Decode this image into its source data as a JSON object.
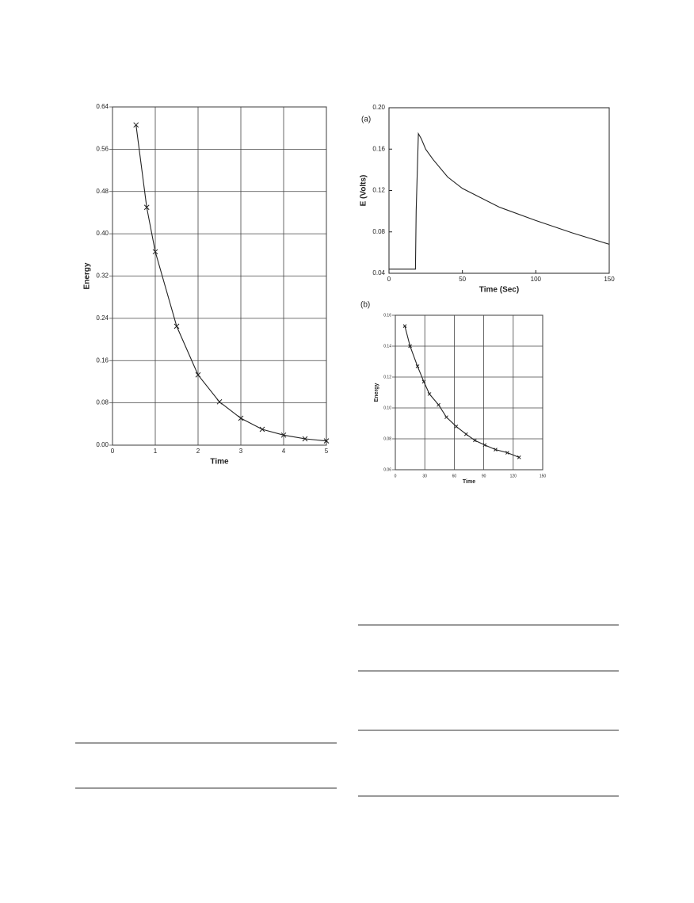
{
  "chart_data": [
    {
      "type": "line",
      "xlabel": "Time",
      "ylabel": "Energy",
      "xlim": [
        0,
        5
      ],
      "xticks": [
        0,
        1,
        2,
        3,
        4,
        5
      ],
      "ylim": [
        0,
        0.64
      ],
      "yticks": [
        {
          "value": 0,
          "label": "0.00"
        },
        0.08,
        0.16,
        0.24,
        0.32,
        {
          "value": 0.4,
          "label": "0.40"
        },
        0.48,
        0.56,
        0.64
      ],
      "grid": true,
      "series": [
        {
          "color": "#222222",
          "marker": "x",
          "x": [
            0.55,
            0.8,
            1.0,
            1.5,
            2.0,
            2.5,
            3.0,
            3.5,
            4.0,
            4.5,
            5.0
          ],
          "values": [
            0.606,
            0.45,
            0.366,
            0.225,
            0.133,
            0.082,
            0.051,
            0.03,
            0.019,
            0.012,
            0.008
          ]
        }
      ]
    },
    {
      "type": "line",
      "panel_label": "(a)",
      "xlabel": "Time (Sec)",
      "ylabel": "E (Volts)",
      "xlim": [
        0,
        150
      ],
      "xticks": [
        0,
        50,
        100,
        150
      ],
      "ylim": [
        0.04,
        0.2
      ],
      "yticks": [
        0.04,
        0.08,
        0.12,
        0.16,
        {
          "value": 0.2,
          "label": "0.20"
        }
      ],
      "grid": false,
      "series": [
        {
          "color": "#222222",
          "x": [
            0,
            18,
            18.5,
            20,
            22,
            25,
            30,
            40,
            50,
            75,
            100,
            125,
            150
          ],
          "values": [
            0.044,
            0.044,
            0.1,
            0.175,
            0.17,
            0.16,
            0.15,
            0.133,
            0.122,
            0.104,
            0.091,
            0.079,
            0.068
          ]
        }
      ]
    },
    {
      "type": "line",
      "panel_label": "(b)",
      "xlabel": "Time",
      "ylabel": "Energy",
      "xlim": [
        0,
        150
      ],
      "xticks": [
        0,
        30,
        60,
        90,
        120,
        150
      ],
      "ylim": [
        0.06,
        0.16
      ],
      "yticks": [
        0.06,
        0.08,
        {
          "value": 0.1,
          "label": "0.10"
        },
        0.12,
        0.14,
        0.16
      ],
      "grid": true,
      "series": [
        {
          "color": "#222222",
          "marker": "x",
          "x": [
            9.7,
            15,
            22.6,
            29,
            34.7,
            44,
            52,
            62,
            72,
            81,
            91,
            102,
            114,
            126
          ],
          "values": [
            0.153,
            0.14,
            0.127,
            0.117,
            0.109,
            0.102,
            0.094,
            0.088,
            0.083,
            0.079,
            0.076,
            0.073,
            0.071,
            0.068
          ]
        }
      ]
    }
  ]
}
